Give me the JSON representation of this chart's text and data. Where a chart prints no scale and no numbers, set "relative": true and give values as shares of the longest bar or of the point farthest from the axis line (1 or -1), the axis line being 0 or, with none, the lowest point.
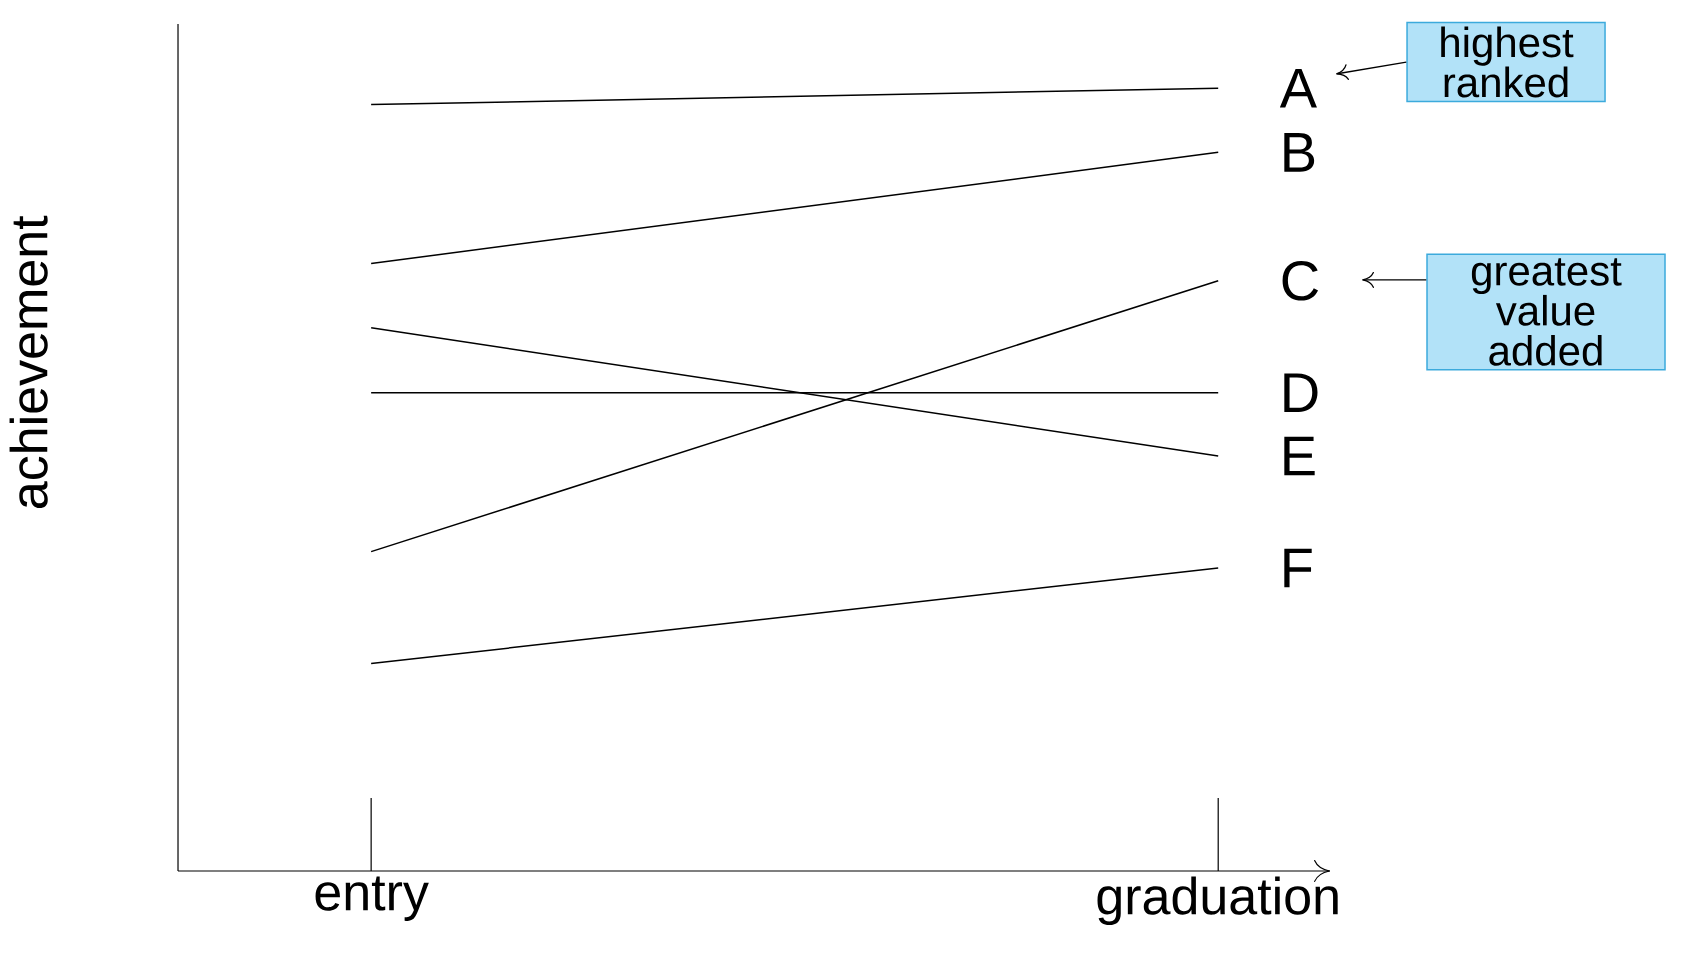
{
  "chart_data": {
    "type": "line",
    "relative": true,
    "ylabel": "achievement",
    "categories": [
      "entry",
      "graduation"
    ],
    "legend": "right",
    "marker": "none",
    "line_style": "solid",
    "series": [
      {
        "name": "A",
        "color": "#000000",
        "values": [
          0.979,
          1
        ]
      },
      {
        "name": "B",
        "color": "#000000",
        "values": [
          0.776,
          0.918
        ]
      },
      {
        "name": "C",
        "color": "#000000",
        "values": [
          0.408,
          0.754
        ]
      },
      {
        "name": "D",
        "color": "#000000",
        "values": [
          0.611,
          0.611
        ]
      },
      {
        "name": "E",
        "color": "#000000",
        "values": [
          0.694,
          0.53
        ]
      },
      {
        "name": "F",
        "color": "#000000",
        "values": [
          0.265,
          0.387
        ]
      }
    ],
    "annotations": [
      "highest ranked",
      "greatest value added"
    ]
  }
}
